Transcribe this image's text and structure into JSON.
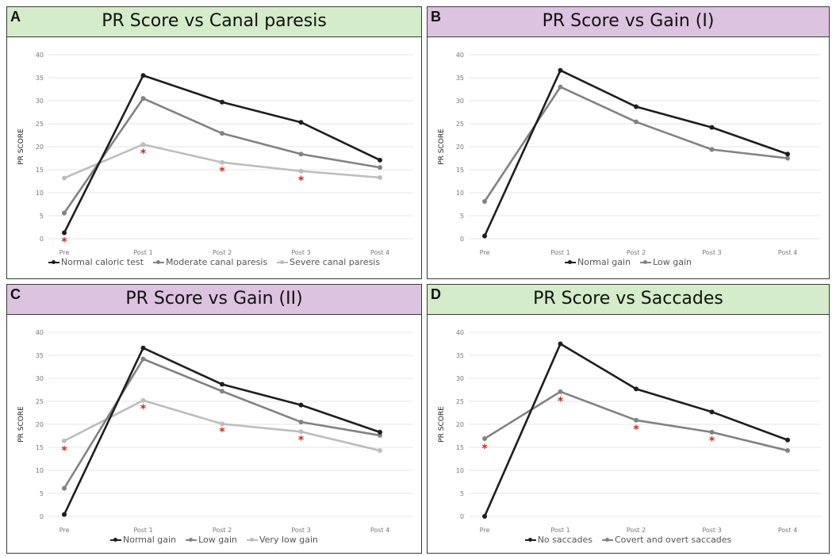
{
  "panels": [
    {
      "letter": "A",
      "title": "PR Score vs Canal paresis",
      "header_color": "#d4ecc9",
      "chart_data": {
        "type": "line",
        "categories": [
          "Pre",
          "Post 1",
          "Post 2",
          "Post 3",
          "Post 4"
        ],
        "ylabel": "PR SCORE",
        "ylim": [
          0,
          40
        ],
        "yticks": [
          "0",
          "5",
          "10",
          "15",
          "20",
          "25",
          "30",
          "35",
          "40"
        ],
        "grid": true,
        "legend_position": "bottom",
        "series": [
          {
            "name": "Normal caloric test",
            "values": [
              1.3,
              35.5,
              29.7,
              25.3,
              17.1
            ],
            "color": "#1e1e1e"
          },
          {
            "name": "Moderate canal paresis",
            "values": [
              5.6,
              30.5,
              22.9,
              18.4,
              15.5
            ],
            "color": "#828282"
          },
          {
            "name": "Severe canal paresis",
            "values": [
              13.2,
              20.5,
              16.6,
              14.7,
              13.3
            ],
            "color": "#bdbdbd"
          }
        ],
        "annotations": [
          {
            "text": "*",
            "category": 0,
            "y": -0.4
          },
          {
            "text": "*",
            "category": 1,
            "y": 18.8
          },
          {
            "text": "*",
            "category": 2,
            "y": 14.9
          },
          {
            "text": "*",
            "category": 3,
            "y": 12.9
          }
        ]
      }
    },
    {
      "letter": "B",
      "title": "PR Score vs Gain (I)",
      "header_color": "#dcc3df",
      "chart_data": {
        "type": "line",
        "categories": [
          "Pre",
          "Post 1",
          "Post 2",
          "Post 3",
          "Post 4"
        ],
        "ylabel": "PR SCORE",
        "ylim": [
          0,
          40
        ],
        "yticks": [
          "0",
          "5",
          "10",
          "15",
          "20",
          "25",
          "30",
          "35",
          "40"
        ],
        "grid": true,
        "legend_position": "bottom",
        "series": [
          {
            "name": "Normal gain",
            "values": [
              0.6,
              36.6,
              28.7,
              24.2,
              18.4
            ],
            "color": "#1e1e1e"
          },
          {
            "name": "Low gain",
            "values": [
              8.1,
              33.0,
              25.4,
              19.4,
              17.5
            ],
            "color": "#828282"
          }
        ],
        "annotations": []
      }
    },
    {
      "letter": "C",
      "title": "PR Score vs Gain (II)",
      "header_color": "#dcc3df",
      "chart_data": {
        "type": "line",
        "categories": [
          "Pre",
          "Post 1",
          "Post 2",
          "Post 3",
          "Post 4"
        ],
        "ylabel": "PR SCORE",
        "ylim": [
          0,
          40
        ],
        "yticks": [
          "0",
          "5",
          "10",
          "15",
          "20",
          "25",
          "30",
          "35",
          "40"
        ],
        "grid": true,
        "legend_position": "bottom",
        "series": [
          {
            "name": "Normal gain",
            "values": [
              0.4,
              36.6,
              28.7,
              24.2,
              18.3
            ],
            "color": "#1e1e1e"
          },
          {
            "name": "Low gain",
            "values": [
              6.1,
              34.2,
              27.2,
              20.5,
              17.6
            ],
            "color": "#828282"
          },
          {
            "name": "Very low gain",
            "values": [
              16.4,
              25.2,
              20.1,
              18.4,
              14.3
            ],
            "color": "#bdbdbd"
          }
        ],
        "annotations": [
          {
            "text": "*",
            "category": 0,
            "y": 14.6
          },
          {
            "text": "*",
            "category": 1,
            "y": 23.6
          },
          {
            "text": "*",
            "category": 2,
            "y": 18.6
          },
          {
            "text": "*",
            "category": 3,
            "y": 16.8
          }
        ]
      }
    },
    {
      "letter": "D",
      "title": "PR Score vs Saccades",
      "header_color": "#d4ecc9",
      "chart_data": {
        "type": "line",
        "categories": [
          "Pre",
          "Post 1",
          "Post 2",
          "Post 3",
          "Post 4"
        ],
        "ylabel": "PR SCORE",
        "ylim": [
          0,
          40
        ],
        "yticks": [
          "0",
          "5",
          "10",
          "15",
          "20",
          "25",
          "30",
          "35",
          "40"
        ],
        "grid": true,
        "legend_position": "bottom",
        "series": [
          {
            "name": "No saccades",
            "values": [
              0.0,
              37.5,
              27.7,
              22.7,
              16.6
            ],
            "color": "#1e1e1e"
          },
          {
            "name": "Covert and overt saccades",
            "values": [
              16.9,
              27.1,
              20.9,
              18.3,
              14.3
            ],
            "color": "#828282"
          }
        ],
        "annotations": [
          {
            "text": "*",
            "category": 0,
            "y": 15.0
          },
          {
            "text": "*",
            "category": 1,
            "y": 25.3
          },
          {
            "text": "*",
            "category": 2,
            "y": 19.1
          },
          {
            "text": "*",
            "category": 3,
            "y": 16.6
          }
        ]
      }
    }
  ]
}
